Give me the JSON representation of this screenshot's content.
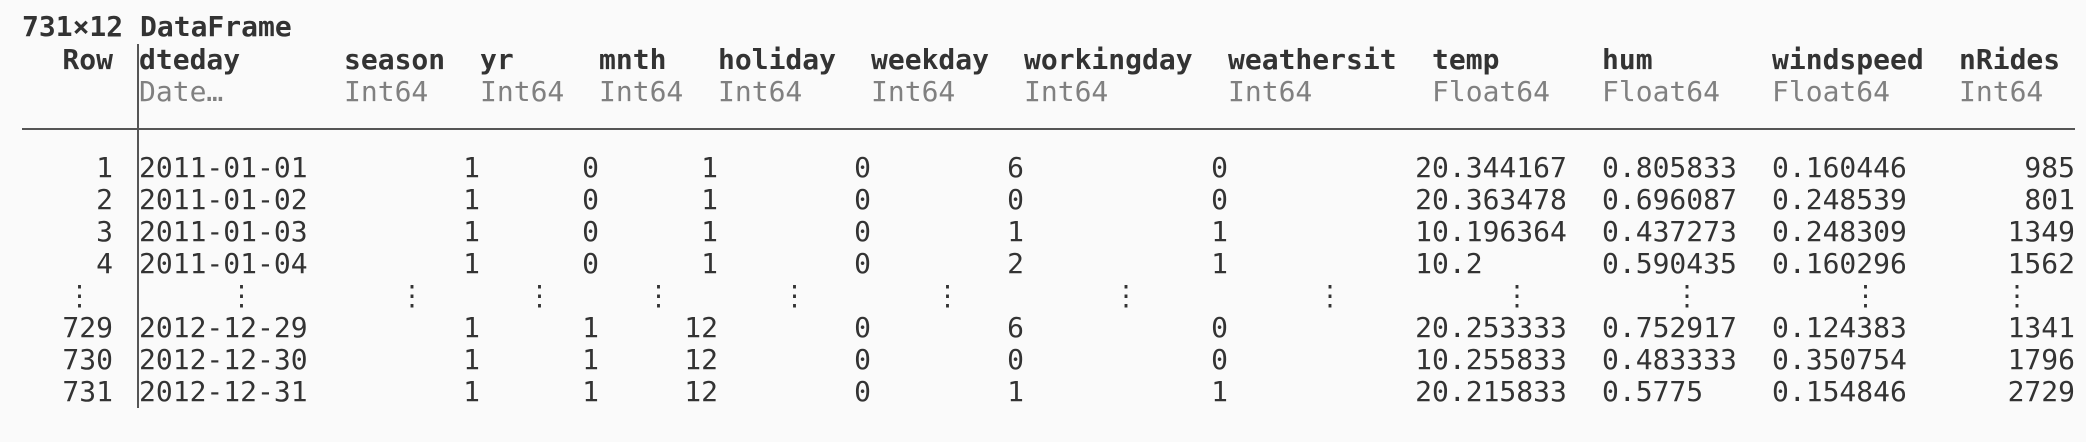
{
  "title": "731×12 DataFrame",
  "row_label": "Row",
  "columns": [
    {
      "name": "dteday",
      "type": "Date…"
    },
    {
      "name": "season",
      "type": "Int64"
    },
    {
      "name": "yr",
      "type": "Int64"
    },
    {
      "name": "mnth",
      "type": "Int64"
    },
    {
      "name": "holiday",
      "type": "Int64"
    },
    {
      "name": "weekday",
      "type": "Int64"
    },
    {
      "name": "workingday",
      "type": "Int64"
    },
    {
      "name": "weathersit",
      "type": "Int64"
    },
    {
      "name": "temp",
      "type": "Float64"
    },
    {
      "name": "hum",
      "type": "Float64"
    },
    {
      "name": "windspeed",
      "type": "Float64"
    },
    {
      "name": "nRides",
      "type": "Int64"
    }
  ],
  "rows_top": [
    {
      "row": "1",
      "cells": [
        "2011-01-01",
        "1",
        "0",
        "1",
        "0",
        "6",
        "0",
        "2",
        "0.344167",
        "0.805833",
        "0.160446",
        "985"
      ]
    },
    {
      "row": "2",
      "cells": [
        "2011-01-02",
        "1",
        "0",
        "1",
        "0",
        "0",
        "0",
        "2",
        "0.363478",
        "0.696087",
        "0.248539",
        "801"
      ]
    },
    {
      "row": "3",
      "cells": [
        "2011-01-03",
        "1",
        "0",
        "1",
        "0",
        "1",
        "1",
        "1",
        "0.196364",
        "0.437273",
        "0.248309",
        "1349"
      ]
    },
    {
      "row": "4",
      "cells": [
        "2011-01-04",
        "1",
        "0",
        "1",
        "0",
        "2",
        "1",
        "1",
        "0.2",
        "0.590435",
        "0.160296",
        "1562"
      ]
    }
  ],
  "ellipsis": "⋮",
  "rows_bottom": [
    {
      "row": "729",
      "cells": [
        "2012-12-29",
        "1",
        "1",
        "12",
        "0",
        "6",
        "0",
        "2",
        "0.253333",
        "0.752917",
        "0.124383",
        "1341"
      ]
    },
    {
      "row": "730",
      "cells": [
        "2012-12-30",
        "1",
        "1",
        "12",
        "0",
        "0",
        "0",
        "1",
        "0.255833",
        "0.483333",
        "0.350754",
        "1796"
      ]
    },
    {
      "row": "731",
      "cells": [
        "2012-12-31",
        "1",
        "1",
        "12",
        "0",
        "1",
        "1",
        "2",
        "0.215833",
        "0.5775",
        "0.154846",
        "2729"
      ]
    }
  ]
}
